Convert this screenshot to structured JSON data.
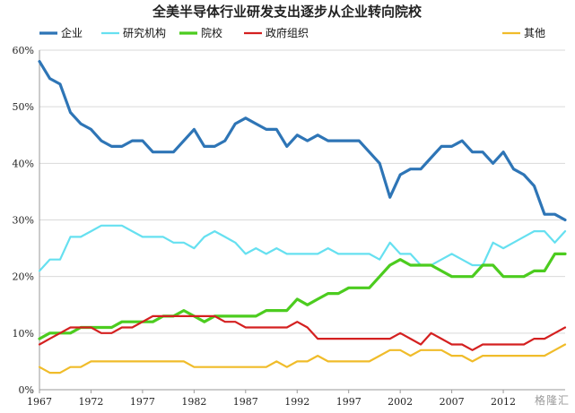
{
  "chart_data": {
    "type": "line",
    "title": "全美半导体行业研发支出逐步从企业转向院校",
    "xlabel": "",
    "ylabel": "",
    "xlim": [
      1967,
      2018
    ],
    "ylim": [
      0,
      60
    ],
    "y_tick_values": [
      0,
      10,
      20,
      30,
      40,
      50,
      60
    ],
    "y_tick_labels": [
      "0%",
      "10%",
      "20%",
      "30%",
      "40%",
      "50%",
      "60%"
    ],
    "x_tick_values": [
      1967,
      1972,
      1977,
      1982,
      1987,
      1992,
      1997,
      2002,
      2007,
      2012
    ],
    "x_tick_labels": [
      "1967",
      "1972",
      "1977",
      "1982",
      "1987",
      "1992",
      "1997",
      "2002",
      "2007",
      "2012"
    ],
    "grid": "horizontal",
    "legend_position": "top",
    "x": [
      1967,
      1968,
      1969,
      1970,
      1971,
      1972,
      1973,
      1974,
      1975,
      1976,
      1977,
      1978,
      1979,
      1980,
      1981,
      1982,
      1983,
      1984,
      1985,
      1986,
      1987,
      1988,
      1989,
      1990,
      1991,
      1992,
      1993,
      1994,
      1995,
      1996,
      1997,
      1998,
      1999,
      2000,
      2001,
      2002,
      2003,
      2004,
      2005,
      2006,
      2007,
      2008,
      2009,
      2010,
      2011,
      2012,
      2013,
      2014,
      2015,
      2016,
      2017,
      2018
    ],
    "series": [
      {
        "name": "企业",
        "color": "#2e75b6",
        "values": [
          58,
          55,
          54,
          49,
          47,
          46,
          44,
          43,
          43,
          44,
          44,
          42,
          42,
          42,
          44,
          46,
          43,
          43,
          44,
          47,
          48,
          47,
          46,
          46,
          43,
          45,
          44,
          45,
          44,
          44,
          44,
          44,
          42,
          40,
          34,
          38,
          39,
          39,
          41,
          43,
          43,
          44,
          42,
          42,
          40,
          42,
          39,
          38,
          36,
          31,
          31,
          30
        ]
      },
      {
        "name": "研究机构",
        "color": "#66e0f0",
        "values": [
          21,
          23,
          23,
          27,
          27,
          28,
          29,
          29,
          29,
          28,
          27,
          27,
          27,
          26,
          26,
          25,
          27,
          28,
          27,
          26,
          24,
          25,
          24,
          25,
          24,
          24,
          24,
          24,
          25,
          24,
          24,
          24,
          24,
          23,
          26,
          24,
          24,
          22,
          22,
          23,
          24,
          23,
          22,
          22,
          26,
          25,
          26,
          27,
          28,
          28,
          26,
          28
        ]
      },
      {
        "name": "院校",
        "color": "#4ccc1f",
        "values": [
          9,
          10,
          10,
          10,
          11,
          11,
          11,
          11,
          12,
          12,
          12,
          12,
          13,
          13,
          14,
          13,
          12,
          13,
          13,
          13,
          13,
          13,
          14,
          14,
          14,
          16,
          15,
          16,
          17,
          17,
          18,
          18,
          18,
          20,
          22,
          23,
          22,
          22,
          22,
          21,
          20,
          20,
          20,
          22,
          22,
          20,
          20,
          20,
          21,
          21,
          24,
          24
        ]
      },
      {
        "name": "政府组织",
        "color": "#d42020",
        "values": [
          8,
          9,
          10,
          11,
          11,
          11,
          10,
          10,
          11,
          11,
          12,
          13,
          13,
          13,
          13,
          13,
          13,
          13,
          12,
          12,
          11,
          11,
          11,
          11,
          11,
          12,
          11,
          9,
          9,
          9,
          9,
          9,
          9,
          9,
          9,
          10,
          9,
          8,
          10,
          9,
          8,
          8,
          7,
          8,
          8,
          8,
          8,
          8,
          9,
          9,
          10,
          11
        ]
      },
      {
        "name": "其他",
        "color": "#f0bc2a",
        "values": [
          4,
          3,
          3,
          4,
          4,
          5,
          5,
          5,
          5,
          5,
          5,
          5,
          5,
          5,
          5,
          4,
          4,
          4,
          4,
          4,
          4,
          4,
          4,
          5,
          4,
          5,
          5,
          6,
          5,
          5,
          5,
          5,
          5,
          6,
          7,
          7,
          6,
          7,
          7,
          7,
          6,
          6,
          5,
          6,
          6,
          6,
          6,
          6,
          6,
          6,
          7,
          8
        ]
      }
    ]
  },
  "watermark": "格隆汇"
}
